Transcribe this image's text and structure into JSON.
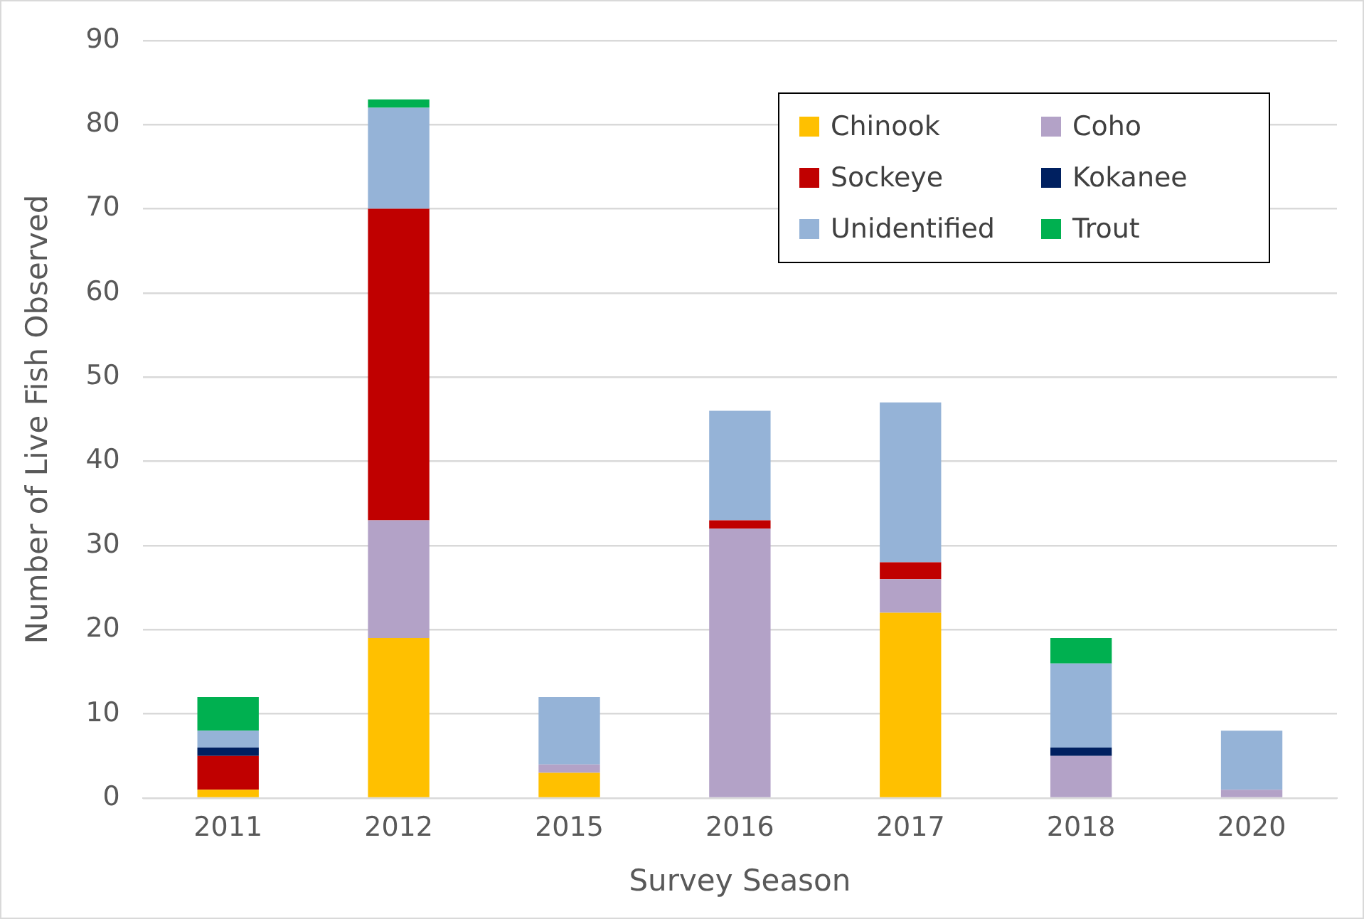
{
  "chart_data": {
    "type": "bar",
    "stacked": true,
    "xlabel": "Survey Season",
    "ylabel": "Number of Live Fish Observed",
    "categories": [
      "2011",
      "2012",
      "2015",
      "2016",
      "2017",
      "2018",
      "2020"
    ],
    "series": [
      {
        "name": "Chinook",
        "color": "#ffc000",
        "values": [
          1,
          19,
          3,
          0,
          22,
          0,
          0
        ]
      },
      {
        "name": "Coho",
        "color": "#b3a2c7",
        "values": [
          0,
          14,
          1,
          32,
          4,
          5,
          1
        ]
      },
      {
        "name": "Sockeye",
        "color": "#c00000",
        "values": [
          4,
          37,
          0,
          1,
          2,
          0,
          0
        ]
      },
      {
        "name": "Kokanee",
        "color": "#002060",
        "values": [
          1,
          0,
          0,
          0,
          0,
          1,
          0
        ]
      },
      {
        "name": "Unidentified",
        "color": "#95b3d7",
        "values": [
          2,
          12,
          8,
          13,
          19,
          10,
          7
        ]
      },
      {
        "name": "Trout",
        "color": "#00b050",
        "values": [
          4,
          1,
          0,
          0,
          0,
          3,
          0
        ]
      }
    ],
    "ylim": [
      0,
      90
    ],
    "yticks": [
      0,
      10,
      20,
      30,
      40,
      50,
      60,
      70,
      80,
      90
    ],
    "grid": "y",
    "legend": "top right"
  }
}
